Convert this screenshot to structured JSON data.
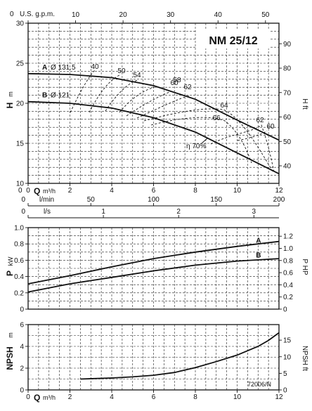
{
  "model": "NM 25/12",
  "footer_code": "72006/N",
  "chart_data": [
    {
      "type": "line",
      "name": "head",
      "ylabel": "H",
      "yunit": "m",
      "y2label": "H",
      "y2unit": "ft",
      "xlabel": "Q",
      "xunit": "m³/h",
      "xlim": [
        0,
        12
      ],
      "ylim": [
        10,
        30
      ],
      "x_ticks": [
        "0",
        "2",
        "4",
        "6",
        "8",
        "10",
        "12"
      ],
      "y_ticks": [
        "10",
        "15",
        "20",
        "25",
        "30"
      ],
      "y2_ticks": [
        "40",
        "50",
        "60",
        "70",
        "80",
        "90"
      ],
      "top_axis": {
        "label": "U.S. g.p.m.",
        "ticks": [
          "0",
          "10",
          "20",
          "30",
          "40",
          "50"
        ]
      },
      "lpm_axis": {
        "label": "l/min",
        "ticks": [
          "0",
          "50",
          "100",
          "150",
          "200"
        ]
      },
      "ls_axis": {
        "label": "l/s",
        "ticks": [
          "0",
          "1",
          "2",
          "3"
        ]
      },
      "series": [
        {
          "name": "A",
          "label": "Ø 131.5",
          "x": [
            0,
            2,
            4,
            6,
            8,
            10,
            12
          ],
          "y": [
            23.7,
            23.6,
            23.2,
            22.2,
            20.5,
            17.9,
            15.4
          ]
        },
        {
          "name": "B",
          "label": "Ø 121",
          "x": [
            0,
            2,
            4,
            6,
            8,
            10,
            12
          ],
          "y": [
            20.2,
            20.0,
            19.4,
            18.2,
            16.4,
            13.8,
            11.2
          ]
        }
      ],
      "efficiency_labels": [
        "40",
        "50",
        "54",
        "58",
        "60",
        "62",
        "64",
        "66",
        "62",
        "60"
      ],
      "efficiency_note": "η 70%"
    },
    {
      "type": "line",
      "name": "power",
      "ylabel": "P",
      "yunit": "kW",
      "y2label": "P",
      "y2unit": "HP",
      "xlim": [
        0,
        12
      ],
      "ylim": [
        0,
        1.0
      ],
      "y_ticks": [
        "0",
        "0.2",
        "0.4",
        "0.6",
        "0.8",
        "1.0"
      ],
      "y2_ticks": [
        "0",
        "0.2",
        "0.4",
        "0.6",
        "0.8",
        "1.0",
        "1.2"
      ],
      "series": [
        {
          "name": "A",
          "x": [
            0,
            2,
            4,
            6,
            8,
            10,
            12
          ],
          "y": [
            0.31,
            0.41,
            0.52,
            0.62,
            0.7,
            0.77,
            0.83
          ]
        },
        {
          "name": "B",
          "x": [
            0,
            2,
            4,
            6,
            8,
            10,
            12
          ],
          "y": [
            0.21,
            0.31,
            0.39,
            0.47,
            0.54,
            0.59,
            0.62
          ]
        }
      ]
    },
    {
      "type": "line",
      "name": "npsh",
      "ylabel": "NPSH",
      "yunit": "m",
      "y2label": "NPSH",
      "y2unit": "ft",
      "xlabel": "Q",
      "xunit": "m³/h",
      "xlim": [
        0,
        12
      ],
      "ylim": [
        0,
        6
      ],
      "x_ticks": [
        "0",
        "2",
        "4",
        "6",
        "8",
        "10",
        "12"
      ],
      "y_ticks": [
        "0",
        "2",
        "4",
        "6"
      ],
      "y2_ticks": [
        "0",
        "5",
        "10",
        "15"
      ],
      "series": [
        {
          "name": "NPSH",
          "x": [
            2.5,
            4,
            5,
            6,
            7,
            8,
            9,
            10,
            11,
            11.5,
            12
          ],
          "y": [
            1.0,
            1.1,
            1.2,
            1.35,
            1.6,
            2.05,
            2.6,
            3.2,
            4.0,
            4.55,
            5.25
          ]
        }
      ]
    }
  ]
}
